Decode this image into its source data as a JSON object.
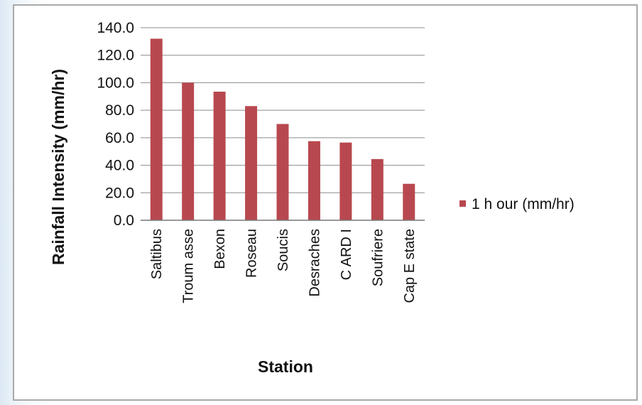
{
  "chart_data": {
    "type": "bar",
    "categories": [
      "Saltibus",
      "Troumasse",
      "Bexon",
      "Roseau",
      "Soucis",
      "Desraches",
      "CARDI",
      "Soufriere",
      "Cap Estate"
    ],
    "category_labels": [
      "Saltibus",
      "Troum asse",
      "Bexon",
      "Roseau",
      "Soucis",
      "Desraches",
      "C ARD I",
      "Soufriere",
      "Cap E state"
    ],
    "series": [
      {
        "name": "1 h our (mm/hr)",
        "values": [
          132.0,
          100.0,
          93.5,
          83.0,
          70.0,
          57.5,
          56.5,
          44.5,
          26.5
        ],
        "color": "#b8484f"
      }
    ],
    "xlabel": "Station",
    "ylabel": "Rainfall Intensity (mm/hr)",
    "ylim": [
      0,
      140
    ],
    "yticks": [
      "0.0",
      "20.0",
      "40.0",
      "60.0",
      "80.0",
      "100.0",
      "120.0",
      "140.0"
    ],
    "grid": true,
    "legend_position": "right"
  }
}
